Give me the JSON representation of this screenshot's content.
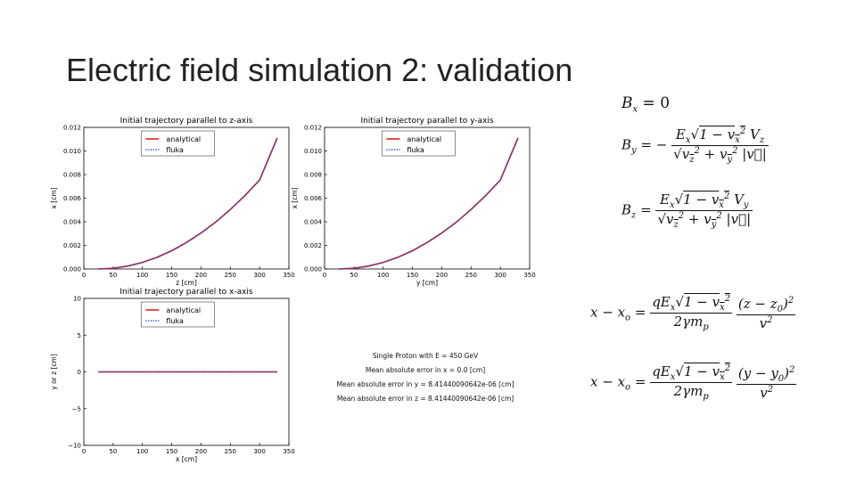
{
  "slide": {
    "title": "Electric field simulation 2: validation"
  },
  "chart_data": [
    {
      "type": "line",
      "title": "Initial trajectory parallel to z-axis",
      "xlabel": "z [cm]",
      "ylabel": "x [cm]",
      "xlim": [
        0,
        350
      ],
      "ylim": [
        0,
        0.012
      ],
      "xticks": [
        "0",
        "50",
        "100",
        "150",
        "200",
        "250",
        "300",
        "350"
      ],
      "yticks": [
        "0.000",
        "0.002",
        "0.004",
        "0.006",
        "0.008",
        "0.010",
        "0.012"
      ],
      "legend_position": "top-center",
      "series": [
        {
          "name": "analytical",
          "color": "#d62728",
          "style": "solid",
          "x": [
            25,
            50,
            75,
            100,
            125,
            150,
            175,
            200,
            225,
            250,
            275,
            300,
            330
          ],
          "y": [
            0,
            6e-05,
            0.00025,
            0.00056,
            0.00099,
            0.00155,
            0.00224,
            0.00305,
            0.00398,
            0.00504,
            0.00622,
            0.00753,
            0.0111
          ]
        },
        {
          "name": "fluka",
          "color": "#1f3fbf",
          "style": "dotted",
          "x": [
            25,
            50,
            75,
            100,
            125,
            150,
            175,
            200,
            225,
            250,
            275,
            300,
            330
          ],
          "y": [
            0,
            6e-05,
            0.00025,
            0.00056,
            0.00099,
            0.00155,
            0.00224,
            0.00305,
            0.00398,
            0.00504,
            0.00622,
            0.00753,
            0.0111
          ]
        }
      ]
    },
    {
      "type": "line",
      "title": "Initial trajectory parallel to y-axis",
      "xlabel": "y [cm]",
      "ylabel": "x [cm]",
      "xlim": [
        0,
        350
      ],
      "ylim": [
        0,
        0.012
      ],
      "xticks": [
        "0",
        "50",
        "100",
        "150",
        "200",
        "250",
        "300",
        "350"
      ],
      "yticks": [
        "0.000",
        "0.002",
        "0.004",
        "0.006",
        "0.008",
        "0.010",
        "0.012"
      ],
      "legend_position": "top-center",
      "series": [
        {
          "name": "analytical",
          "color": "#d62728",
          "style": "solid",
          "x": [
            25,
            50,
            75,
            100,
            125,
            150,
            175,
            200,
            225,
            250,
            275,
            300,
            330
          ],
          "y": [
            0,
            6e-05,
            0.00025,
            0.00056,
            0.00099,
            0.00155,
            0.00224,
            0.00305,
            0.00398,
            0.00504,
            0.00622,
            0.00753,
            0.0111
          ]
        },
        {
          "name": "fluka",
          "color": "#1f3fbf",
          "style": "dotted",
          "x": [
            25,
            50,
            75,
            100,
            125,
            150,
            175,
            200,
            225,
            250,
            275,
            300,
            330
          ],
          "y": [
            0,
            6e-05,
            0.00025,
            0.00056,
            0.00099,
            0.00155,
            0.00224,
            0.00305,
            0.00398,
            0.00504,
            0.00622,
            0.00753,
            0.0111
          ]
        }
      ]
    },
    {
      "type": "line",
      "title": "Initial trajectory parallel to x-axis",
      "xlabel": "x [cm]",
      "ylabel": "y or z [cm]",
      "xlim": [
        0,
        350
      ],
      "ylim": [
        -10,
        10
      ],
      "xticks": [
        "0",
        "50",
        "100",
        "150",
        "200",
        "250",
        "300",
        "350"
      ],
      "yticks": [
        "−10",
        "−5",
        "0",
        "5",
        "10"
      ],
      "legend_position": "top-center",
      "series": [
        {
          "name": "analytical",
          "color": "#d62728",
          "style": "solid",
          "x": [
            25,
            330
          ],
          "y": [
            0,
            0
          ]
        },
        {
          "name": "fluka",
          "color": "#1f3fbf",
          "style": "dotted",
          "x": [
            25,
            330
          ],
          "y": [
            0,
            0
          ]
        }
      ]
    }
  ],
  "info": {
    "line1": "Single Proton with E = 450 GeV",
    "line2": "Mean absolute error in x = 0.0 [cm]",
    "line3": "Mean absolute error in y = 8.41440090642e-06 [cm]",
    "line4": "Mean absolute error in z = 8.41440090642e-06 [cm]"
  }
}
